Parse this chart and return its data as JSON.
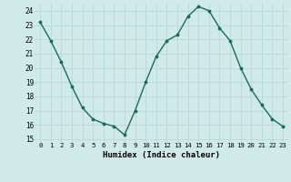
{
  "x": [
    0,
    1,
    2,
    3,
    4,
    5,
    6,
    7,
    8,
    9,
    10,
    11,
    12,
    13,
    14,
    15,
    16,
    17,
    18,
    19,
    20,
    21,
    22,
    23
  ],
  "y": [
    23.2,
    21.9,
    20.4,
    18.7,
    17.2,
    16.4,
    16.1,
    15.9,
    15.3,
    17.0,
    19.0,
    20.8,
    21.9,
    22.3,
    23.6,
    24.3,
    24.0,
    22.8,
    21.9,
    20.0,
    18.5,
    17.4,
    16.4,
    15.9
  ],
  "xlabel": "Humidex (Indice chaleur)",
  "ylim": [
    14.8,
    24.5
  ],
  "xlim": [
    -0.5,
    23.5
  ],
  "line_color": "#1a6b5a",
  "marker_color": "#1a6b5a",
  "bg_color": "#d0eaea",
  "grid_color": "#b8d8d8",
  "yticks": [
    15,
    16,
    17,
    18,
    19,
    20,
    21,
    22,
    23,
    24
  ],
  "xticks": [
    0,
    1,
    2,
    3,
    4,
    5,
    6,
    7,
    8,
    9,
    10,
    11,
    12,
    13,
    14,
    15,
    16,
    17,
    18,
    19,
    20,
    21,
    22,
    23
  ]
}
